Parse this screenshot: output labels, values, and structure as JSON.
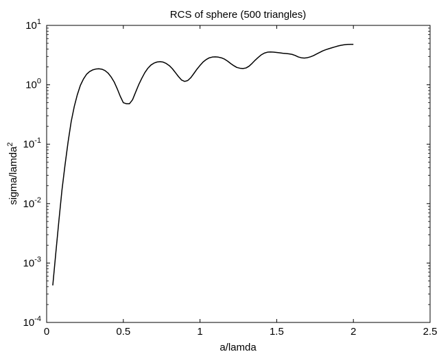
{
  "chart_data": {
    "type": "line",
    "title": "RCS of sphere (500 triangles)",
    "xlabel": "a/lamda",
    "ylabel": "sigma/lamda",
    "ylabel_superscript": "2",
    "xlim": [
      0,
      2.5
    ],
    "ylim": [
      0.0001,
      10
    ],
    "yscale": "log",
    "grid": false,
    "x_ticks": [
      "0",
      "0.5",
      "1",
      "1.5",
      "2",
      "2.5"
    ],
    "y_ticks": [
      {
        "base": "10",
        "exp": "-4"
      },
      {
        "base": "10",
        "exp": "-3"
      },
      {
        "base": "10",
        "exp": "-2"
      },
      {
        "base": "10",
        "exp": "-1"
      },
      {
        "base": "10",
        "exp": "0"
      },
      {
        "base": "10",
        "exp": "1"
      }
    ],
    "series": [
      {
        "color": "#000000",
        "x": [
          0.04,
          0.06,
          0.08,
          0.1,
          0.12,
          0.14,
          0.16,
          0.18,
          0.2,
          0.22,
          0.24,
          0.26,
          0.28,
          0.3,
          0.32,
          0.34,
          0.36,
          0.38,
          0.4,
          0.42,
          0.44,
          0.46,
          0.48,
          0.5,
          0.52,
          0.54,
          0.56,
          0.58,
          0.6,
          0.62,
          0.64,
          0.66,
          0.68,
          0.7,
          0.72,
          0.74,
          0.76,
          0.78,
          0.8,
          0.82,
          0.84,
          0.86,
          0.88,
          0.9,
          0.92,
          0.94,
          0.96,
          0.98,
          1.0,
          1.02,
          1.04,
          1.06,
          1.08,
          1.1,
          1.12,
          1.14,
          1.16,
          1.18,
          1.2,
          1.22,
          1.24,
          1.26,
          1.28,
          1.3,
          1.32,
          1.34,
          1.36,
          1.38,
          1.4,
          1.42,
          1.44,
          1.46,
          1.48,
          1.5,
          1.52,
          1.54,
          1.56,
          1.58,
          1.6,
          1.62,
          1.64,
          1.66,
          1.68,
          1.7,
          1.72,
          1.74,
          1.76,
          1.78,
          1.8,
          1.82,
          1.84,
          1.86,
          1.88,
          1.9,
          1.92,
          1.94,
          1.96,
          1.98,
          2.0
        ],
        "y": [
          0.00042,
          0.0015,
          0.0052,
          0.017,
          0.045,
          0.11,
          0.24,
          0.43,
          0.68,
          0.98,
          1.25,
          1.5,
          1.67,
          1.78,
          1.84,
          1.86,
          1.83,
          1.74,
          1.58,
          1.36,
          1.12,
          0.86,
          0.64,
          0.5,
          0.48,
          0.48,
          0.56,
          0.75,
          1.0,
          1.28,
          1.6,
          1.9,
          2.15,
          2.32,
          2.42,
          2.45,
          2.41,
          2.28,
          2.1,
          1.86,
          1.6,
          1.37,
          1.2,
          1.14,
          1.18,
          1.32,
          1.55,
          1.83,
          2.12,
          2.42,
          2.66,
          2.84,
          2.93,
          2.95,
          2.92,
          2.84,
          2.7,
          2.5,
          2.28,
          2.1,
          1.96,
          1.9,
          1.88,
          1.92,
          2.06,
          2.3,
          2.6,
          2.9,
          3.2,
          3.42,
          3.54,
          3.57,
          3.55,
          3.5,
          3.45,
          3.4,
          3.36,
          3.32,
          3.25,
          3.12,
          2.95,
          2.85,
          2.82,
          2.86,
          2.96,
          3.1,
          3.3,
          3.5,
          3.72,
          3.9,
          4.05,
          4.2,
          4.35,
          4.5,
          4.62,
          4.72,
          4.78,
          4.8,
          4.8
        ]
      }
    ]
  }
}
